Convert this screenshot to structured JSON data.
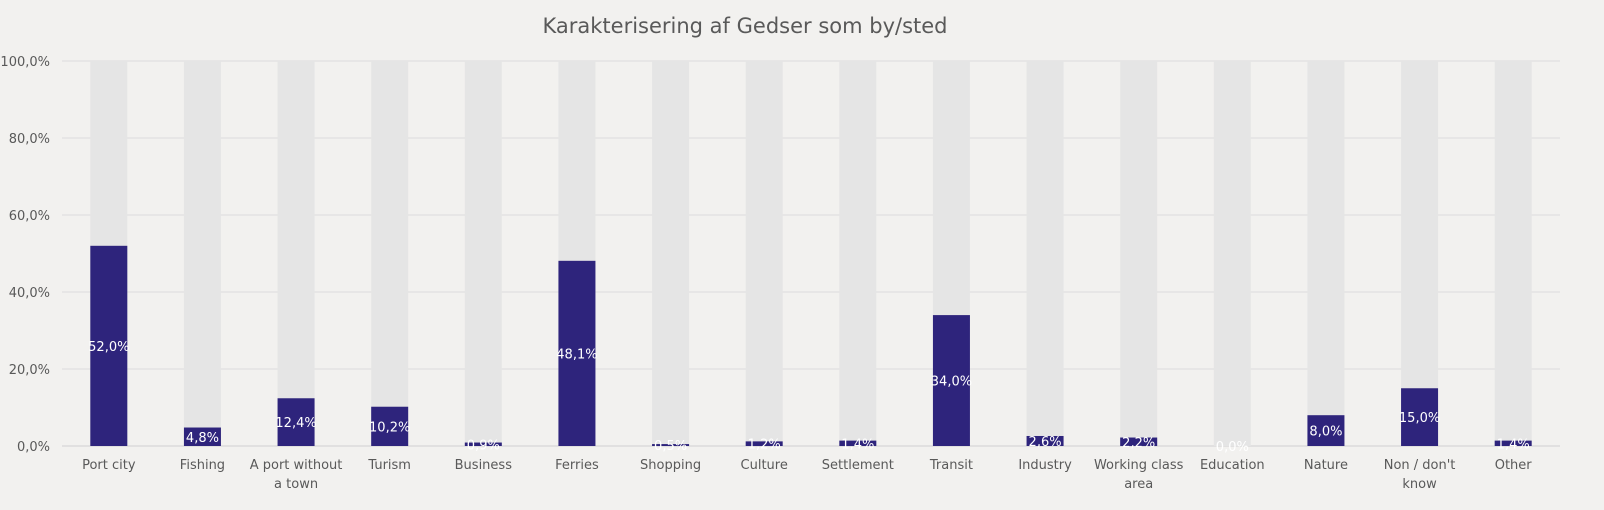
{
  "chart_data": {
    "type": "bar",
    "title": "Karakterisering af Gedser som by/sted",
    "xlabel": "",
    "ylabel": "",
    "ylim": [
      0,
      100
    ],
    "yticks": [
      "0,0%",
      "20,0%",
      "40,0%",
      "60,0%",
      "80,0%",
      "100,0%"
    ],
    "grid": true,
    "categories": [
      "Port city",
      "Fishing",
      "A port without a town",
      "Turism",
      "Business",
      "Ferries",
      "Shopping",
      "Culture",
      "Settlement",
      "Transit",
      "Industry",
      "Working class area",
      "Education",
      "Nature",
      "Non / don't know",
      "Other"
    ],
    "category_lines": [
      [
        "Port city"
      ],
      [
        "Fishing"
      ],
      [
        "A port without",
        "a town"
      ],
      [
        "Turism"
      ],
      [
        "Business"
      ],
      [
        "Ferries"
      ],
      [
        "Shopping"
      ],
      [
        "Culture"
      ],
      [
        "Settlement"
      ],
      [
        "Transit"
      ],
      [
        "Industry"
      ],
      [
        "Working class",
        "area"
      ],
      [
        "Education"
      ],
      [
        "Nature"
      ],
      [
        "Non / don't",
        "know"
      ],
      [
        "Other"
      ]
    ],
    "values": [
      52.0,
      4.8,
      12.4,
      10.2,
      0.9,
      48.1,
      0.5,
      1.2,
      1.4,
      34.0,
      2.6,
      2.2,
      0.0,
      8.0,
      15.0,
      1.4
    ],
    "labels": [
      "52,0%",
      "4,8%",
      "12,4%",
      "10,2%",
      "0,9%",
      "48,1%",
      "0,5%",
      "1,2%",
      "1,4%",
      "34,0%",
      "2,6%",
      "2,2%",
      "0,0%",
      "8,0%",
      "15,0%",
      "1,4%"
    ],
    "bar_color": "#2e247c",
    "background_bar_color": "#e5e5e5"
  }
}
